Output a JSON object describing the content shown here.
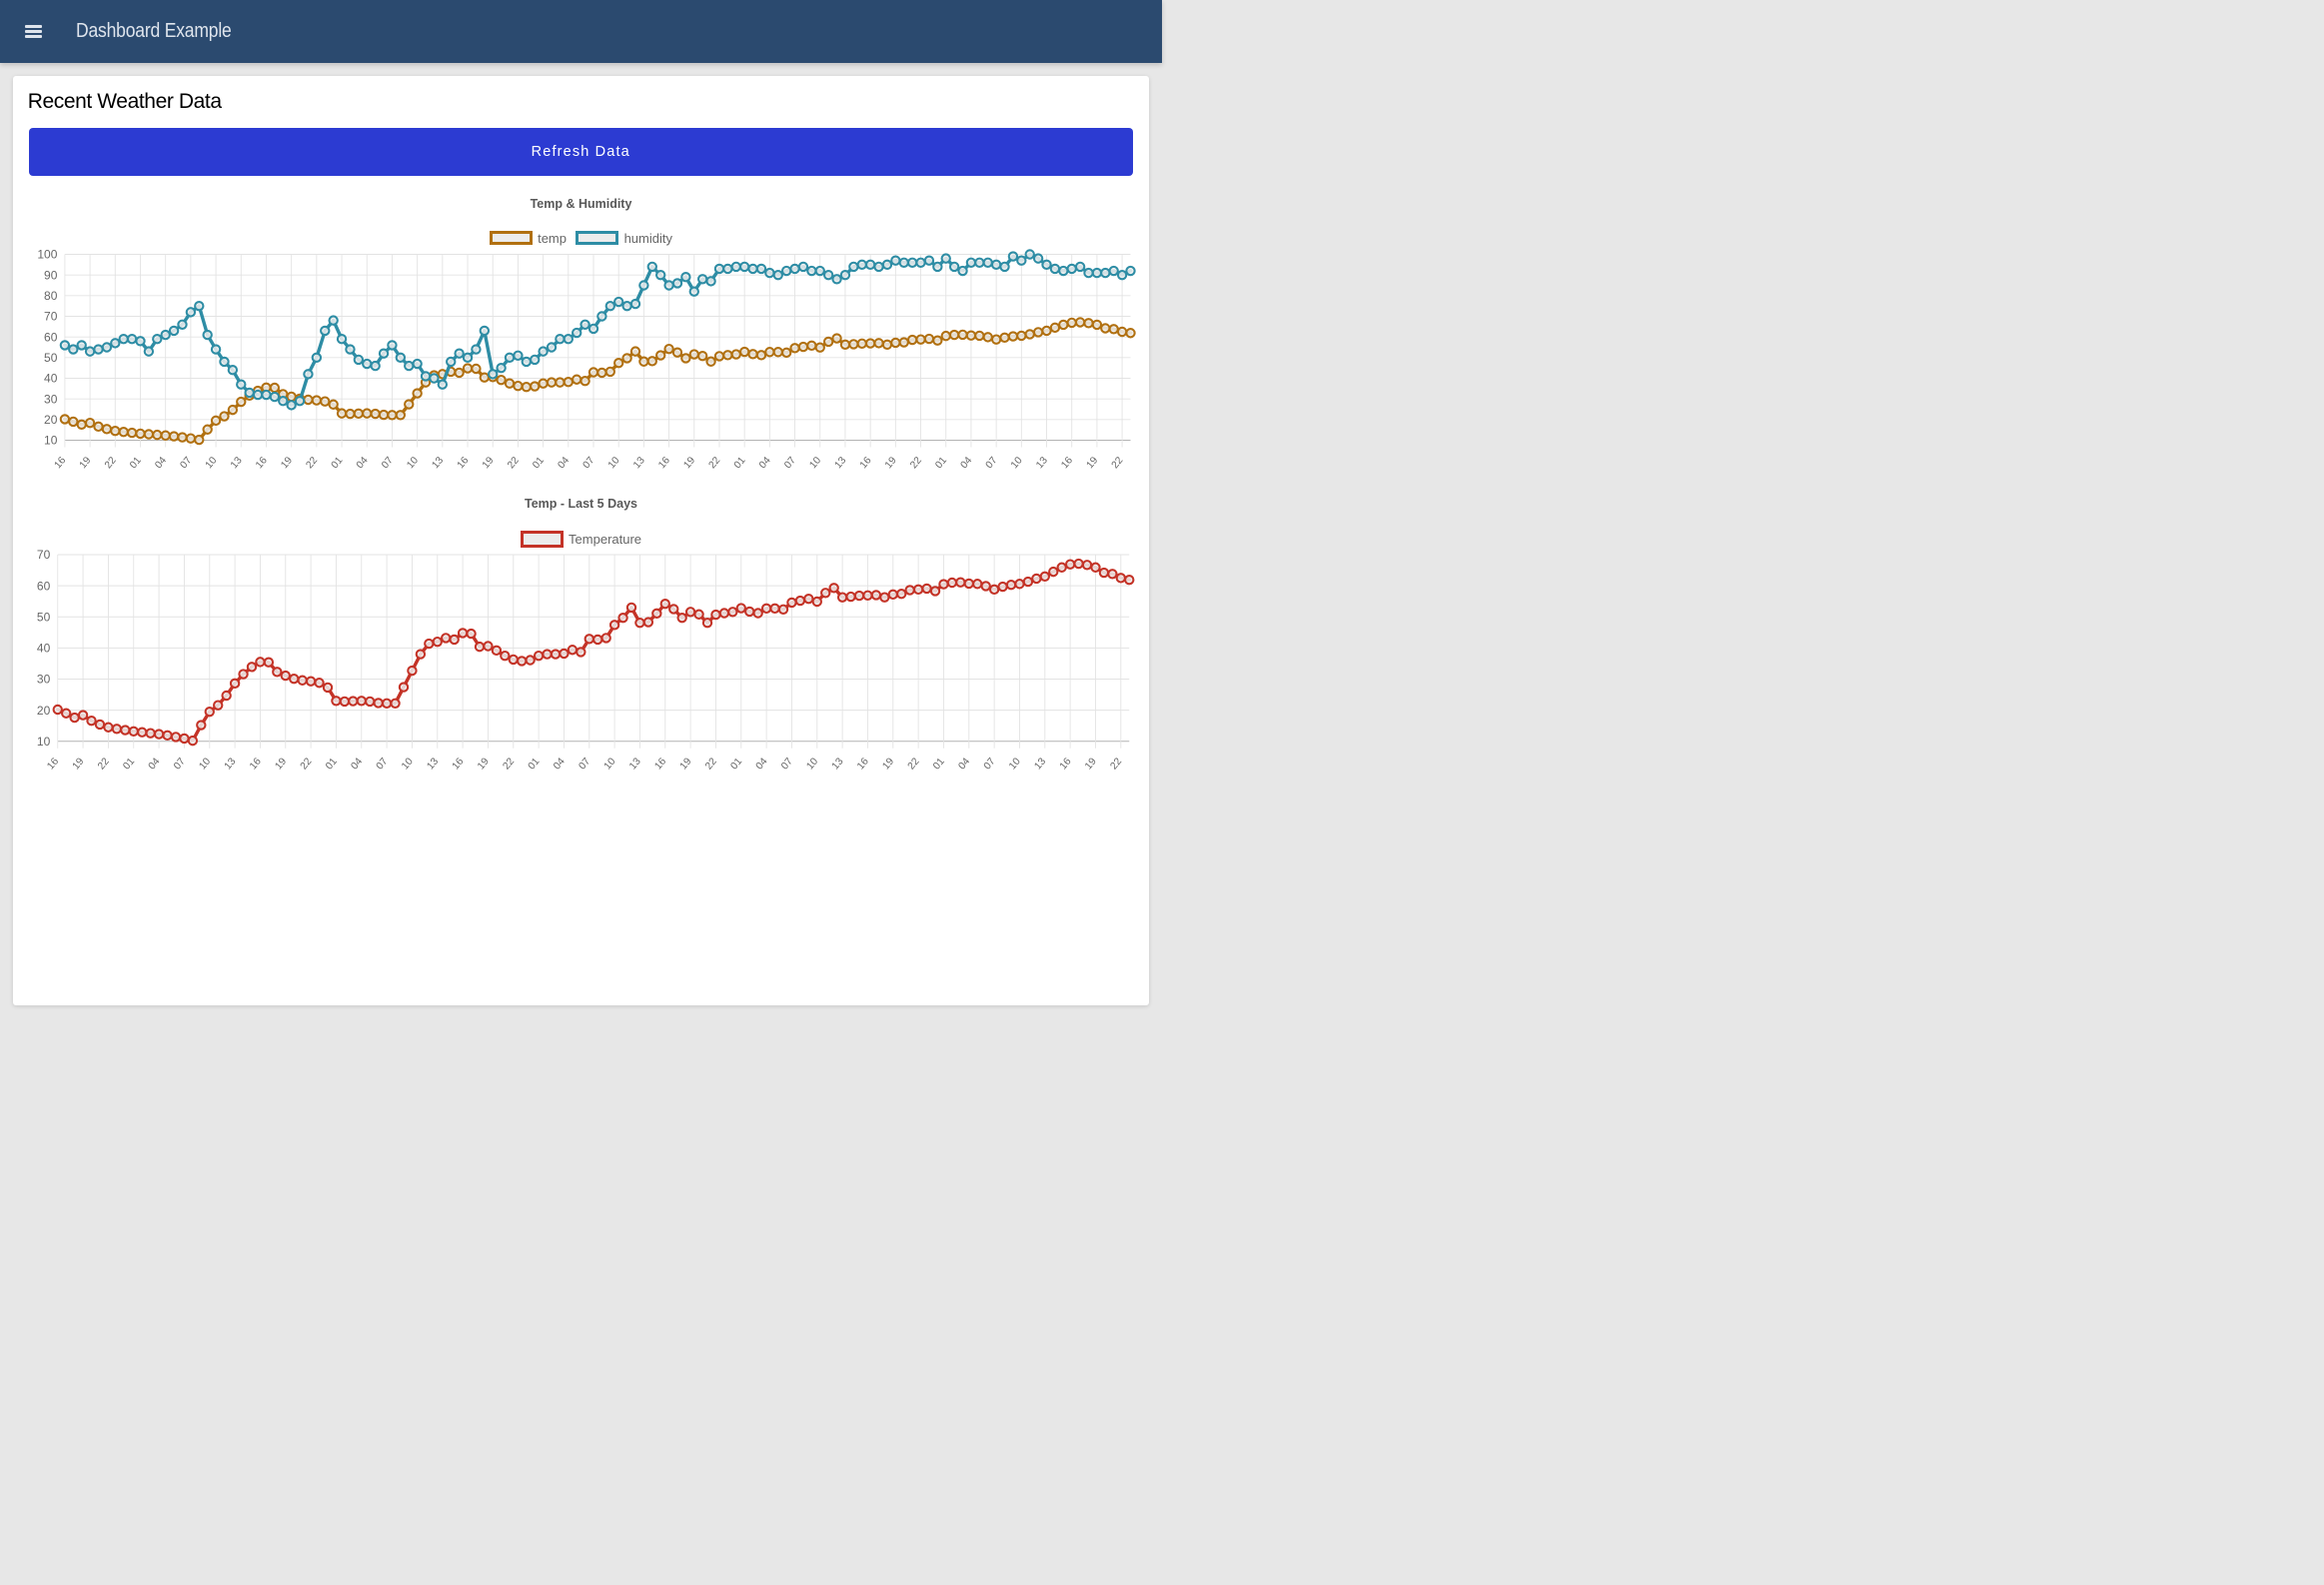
{
  "header": {
    "title": "Dashboard Example",
    "menu_icon": "hamburger-icon"
  },
  "main": {
    "heading": "Recent Weather Data",
    "refresh_button_label": "Refresh Data"
  },
  "colors": {
    "header_background": "#2b4a6f",
    "header_text": "#dfe5ed",
    "page_background": "#e7e7e7",
    "card_background": "#ffffff",
    "button_blue": "#2c3bd2",
    "temp_series": "#b17010",
    "humidity_series": "#2e8da5",
    "temperature_series": "#c43327",
    "gridline": "#e3e3e3",
    "axis_border": "#b3b3b3",
    "tick_text": "#666666",
    "point_fill": "#f2f2f2"
  },
  "chart_data": [
    {
      "type": "line",
      "title": "Temp & Humidity",
      "legend_position": "top",
      "grid": true,
      "ylim": [
        10,
        100
      ],
      "ytick_step": 10,
      "x_label_every": 3,
      "x": [
        "16",
        "17",
        "18",
        "19",
        "20",
        "21",
        "22",
        "23",
        "00",
        "01",
        "02",
        "03",
        "04",
        "05",
        "06",
        "07",
        "08",
        "09",
        "10",
        "11",
        "12",
        "13",
        "14",
        "15",
        "16",
        "17",
        "18",
        "19",
        "20",
        "21",
        "22",
        "23",
        "00",
        "01",
        "02",
        "03",
        "04",
        "05",
        "06",
        "07",
        "08",
        "09",
        "10",
        "11",
        "12",
        "13",
        "14",
        "15",
        "16",
        "17",
        "18",
        "19",
        "20",
        "21",
        "22",
        "23",
        "00",
        "01",
        "02",
        "03",
        "04",
        "05",
        "06",
        "07",
        "08",
        "09",
        "10",
        "11",
        "12",
        "13",
        "14",
        "15",
        "16",
        "17",
        "18",
        "19",
        "20",
        "21",
        "22",
        "23",
        "00",
        "01",
        "02",
        "03",
        "04",
        "05",
        "06",
        "07",
        "08",
        "09",
        "10",
        "11",
        "12",
        "13",
        "14",
        "15",
        "16",
        "17",
        "18",
        "19",
        "20",
        "21",
        "22",
        "23",
        "00",
        "01",
        "02",
        "03",
        "04",
        "05",
        "06",
        "07",
        "08",
        "09",
        "10",
        "11",
        "12",
        "13",
        "14",
        "15",
        "16",
        "17",
        "18",
        "19",
        "20",
        "21",
        "22",
        "23"
      ],
      "series": [
        {
          "name": "temp",
          "color": "#b17010",
          "values": [
            20.2,
            19,
            17.6,
            18.4,
            16.6,
            15.4,
            14.5,
            14,
            13.6,
            13.2,
            12.9,
            12.6,
            12.3,
            11.9,
            11.4,
            10.9,
            10.2,
            15.2,
            19.5,
            21.6,
            24.7,
            28.6,
            31.6,
            33.9,
            35.5,
            35.4,
            32.3,
            31.1,
            30.1,
            29.6,
            29.3,
            28.8,
            27.3,
            23,
            22.8,
            22.9,
            23,
            22.8,
            22.3,
            22.2,
            22.2,
            27.4,
            32.7,
            38,
            41.4,
            42,
            43.2,
            42.7,
            44.8,
            44.6,
            40.4,
            40.6,
            39.2,
            37.5,
            36.3,
            35.8,
            36.1,
            37.5,
            38,
            38,
            38.2,
            39.4,
            38.7,
            42.9,
            42.7,
            43.2,
            47.4,
            49.7,
            53,
            48.1,
            48.3,
            51.1,
            54.2,
            52.5,
            49.7,
            51.6,
            50.8,
            48.1,
            50.7,
            51.2,
            51.6,
            52.8,
            51.7,
            51.2,
            52.7,
            52.7,
            52.4,
            54.6,
            55.2,
            55.8,
            54.9,
            57.7,
            59.3,
            56.3,
            56.5,
            56.8,
            56.9,
            57,
            56.3,
            57.2,
            57.4,
            58.6,
            58.8,
            59.1,
            58.3,
            60.5,
            61,
            61.1,
            60.7,
            60.6,
            59.9,
            58.8,
            59.7,
            60.3,
            60.6,
            61.3,
            62.3,
            63,
            64.5,
            65.9,
            66.9,
            67.1,
            66.7,
            65.9,
            64.2,
            63.8,
            62.5,
            61.9
          ]
        },
        {
          "name": "humidity",
          "color": "#2e8da5",
          "values": [
            56,
            54,
            56,
            53,
            54,
            55,
            57,
            59,
            59,
            58,
            53,
            59,
            61,
            63,
            66,
            72,
            75,
            61,
            54,
            48,
            44,
            37,
            33,
            32,
            32,
            31,
            29,
            27,
            29,
            42,
            50,
            63,
            68,
            59,
            54,
            49,
            47,
            46,
            52,
            56,
            50,
            46,
            47,
            41,
            40,
            37,
            48,
            52,
            50,
            54,
            63,
            42,
            45,
            50,
            51,
            48,
            49,
            53,
            55,
            59,
            59,
            62,
            66,
            64,
            70,
            75,
            77,
            75,
            76,
            85,
            94,
            90,
            85,
            86,
            89,
            82,
            88,
            87,
            93,
            93,
            94,
            94,
            93,
            93,
            91,
            90,
            92,
            93,
            94,
            92,
            92,
            90,
            88,
            90,
            94,
            95,
            95,
            94,
            95,
            97,
            96,
            96,
            96,
            97,
            94,
            98,
            94,
            92,
            96,
            96,
            96,
            95,
            94,
            99,
            97,
            100,
            98,
            95,
            93,
            92,
            93,
            94,
            91,
            91,
            91,
            92,
            90,
            92
          ]
        }
      ]
    },
    {
      "type": "line",
      "title": "Temp - Last 5 Days",
      "legend_position": "top",
      "grid": true,
      "ylim": [
        10,
        70
      ],
      "ytick_step": 10,
      "x_label_every": 3,
      "x": [
        "16",
        "17",
        "18",
        "19",
        "20",
        "21",
        "22",
        "23",
        "00",
        "01",
        "02",
        "03",
        "04",
        "05",
        "06",
        "07",
        "08",
        "09",
        "10",
        "11",
        "12",
        "13",
        "14",
        "15",
        "16",
        "17",
        "18",
        "19",
        "20",
        "21",
        "22",
        "23",
        "00",
        "01",
        "02",
        "03",
        "04",
        "05",
        "06",
        "07",
        "08",
        "09",
        "10",
        "11",
        "12",
        "13",
        "14",
        "15",
        "16",
        "17",
        "18",
        "19",
        "20",
        "21",
        "22",
        "23",
        "00",
        "01",
        "02",
        "03",
        "04",
        "05",
        "06",
        "07",
        "08",
        "09",
        "10",
        "11",
        "12",
        "13",
        "14",
        "15",
        "16",
        "17",
        "18",
        "19",
        "20",
        "21",
        "22",
        "23",
        "00",
        "01",
        "02",
        "03",
        "04",
        "05",
        "06",
        "07",
        "08",
        "09",
        "10",
        "11",
        "12",
        "13",
        "14",
        "15",
        "16",
        "17",
        "18",
        "19",
        "20",
        "21",
        "22",
        "23",
        "00",
        "01",
        "02",
        "03",
        "04",
        "05",
        "06",
        "07",
        "08",
        "09",
        "10",
        "11",
        "12",
        "13",
        "14",
        "15",
        "16",
        "17",
        "18",
        "19",
        "20",
        "21",
        "22",
        "23"
      ],
      "series": [
        {
          "name": "Temperature",
          "color": "#c43327",
          "values": [
            20.2,
            19,
            17.6,
            18.4,
            16.6,
            15.4,
            14.5,
            14,
            13.6,
            13.2,
            12.9,
            12.6,
            12.3,
            11.9,
            11.4,
            10.9,
            10.2,
            15.2,
            19.5,
            21.6,
            24.7,
            28.6,
            31.6,
            33.9,
            35.5,
            35.4,
            32.3,
            31.1,
            30.1,
            29.6,
            29.3,
            28.8,
            27.3,
            23,
            22.8,
            22.9,
            23,
            22.8,
            22.3,
            22.2,
            22.2,
            27.4,
            32.7,
            38,
            41.4,
            42,
            43.2,
            42.7,
            44.8,
            44.6,
            40.4,
            40.6,
            39.2,
            37.5,
            36.3,
            35.8,
            36.1,
            37.5,
            38,
            38,
            38.2,
            39.4,
            38.7,
            42.9,
            42.7,
            43.2,
            47.4,
            49.7,
            53,
            48.1,
            48.3,
            51.1,
            54.2,
            52.5,
            49.7,
            51.6,
            50.8,
            48.1,
            50.7,
            51.2,
            51.6,
            52.8,
            51.7,
            51.2,
            52.7,
            52.7,
            52.4,
            54.6,
            55.2,
            55.8,
            54.9,
            57.7,
            59.3,
            56.3,
            56.5,
            56.8,
            56.9,
            57,
            56.3,
            57.2,
            57.4,
            58.6,
            58.8,
            59.1,
            58.3,
            60.5,
            61,
            61.1,
            60.7,
            60.6,
            59.9,
            58.8,
            59.7,
            60.3,
            60.6,
            61.3,
            62.3,
            63,
            64.5,
            65.9,
            66.9,
            67.1,
            66.7,
            65.9,
            64.2,
            63.8,
            62.5,
            61.9
          ]
        }
      ]
    }
  ]
}
